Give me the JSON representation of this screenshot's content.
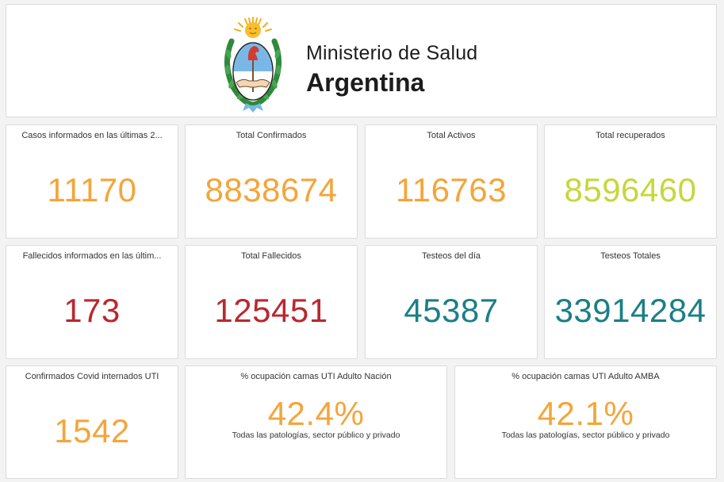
{
  "header": {
    "ministry": "Ministerio de Salud",
    "country": "Argentina",
    "emblem_icon": "coat-of-arms-of-argentina"
  },
  "colors": {
    "orange": "#f4a53a",
    "yellow_green": "#c6d73c",
    "red": "#b9282f",
    "teal": "#1b7f86"
  },
  "stats": {
    "cases_24h": {
      "label": "Casos informados en las últimas 2...",
      "value": "11170"
    },
    "total_confirmed": {
      "label": "Total Confirmados",
      "value": "8838674"
    },
    "total_active": {
      "label": "Total Activos",
      "value": "116763"
    },
    "total_recovered": {
      "label": "Total recuperados",
      "value": "8596460"
    },
    "deaths_24h": {
      "label": "Fallecidos informados en las últim...",
      "value": "173"
    },
    "total_deaths": {
      "label": "Total Fallecidos",
      "value": "125451"
    },
    "tests_day": {
      "label": "Testeos del día",
      "value": "45387"
    },
    "tests_total": {
      "label": "Testeos Totales",
      "value": "33914284"
    },
    "icu_confirmed": {
      "label": "Confirmados Covid internados UTI",
      "value": "1542"
    },
    "icu_nation": {
      "label": "% ocupación camas UTI Adulto Nación",
      "value": "42.4%",
      "sub": "Todas las patologías, sector público y privado"
    },
    "icu_amba": {
      "label": "% ocupación camas UTI Adulto AMBA",
      "value": "42.1%",
      "sub": "Todas las patologías, sector público y privado"
    }
  }
}
